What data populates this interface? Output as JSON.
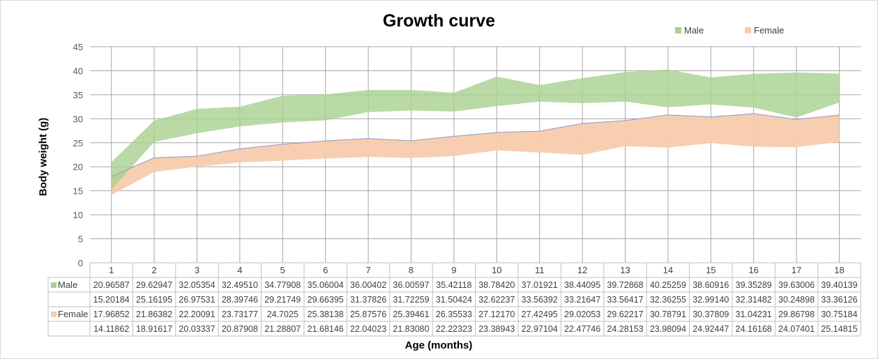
{
  "chart_data": {
    "type": "area",
    "title": "Growth curve",
    "xlabel": "Age (months)",
    "ylabel": "Body weight (g)",
    "ylim": [
      0,
      45
    ],
    "yticks": [
      "0",
      "5",
      "10",
      "15",
      "20",
      "25",
      "30",
      "35",
      "40",
      "45"
    ],
    "grid": true,
    "legend_position": "top-right",
    "categories": [
      "1",
      "2",
      "3",
      "4",
      "5",
      "6",
      "7",
      "8",
      "9",
      "10",
      "11",
      "12",
      "13",
      "14",
      "15",
      "16",
      "17",
      "18"
    ],
    "series": [
      {
        "name": "Male",
        "color": "#a9d18e",
        "upper": [
          "20.96587",
          "29.62947",
          "32.05354",
          "32.49510",
          "34.77908",
          "35.06004",
          "36.00402",
          "36.00597",
          "35.42118",
          "38.78420",
          "37.01921",
          "38.44095",
          "39.72868",
          "40.25259",
          "38.60916",
          "39.35289",
          "39.63006",
          "39.40139"
        ],
        "lower": [
          "15.20184",
          "25.16195",
          "26.97531",
          "28.39746",
          "29.21749",
          "29.66395",
          "31.37826",
          "31.72259",
          "31.50424",
          "32.62237",
          "33.56392",
          "33.21647",
          "33.56417",
          "32.36255",
          "32.99140",
          "32.31482",
          "30.24898",
          "33.36126"
        ]
      },
      {
        "name": "Female",
        "color": "#f8cbad",
        "upper": [
          "17.96852",
          "21.86382",
          "22.20091",
          "23.73177",
          "24.7025",
          "25.38138",
          "25.87576",
          "25.39461",
          "26.35533",
          "27.12170",
          "27.42495",
          "29.02053",
          "29.62217",
          "30.78791",
          "30.37809",
          "31.04231",
          "29.86798",
          "30.75184"
        ],
        "lower": [
          "14.11862",
          "18.91617",
          "20.03337",
          "20.87908",
          "21.28807",
          "21.68146",
          "22.04023",
          "21.83080",
          "22.22323",
          "23.38943",
          "22.97104",
          "22.47746",
          "24.28153",
          "23.98094",
          "24.92447",
          "24.16168",
          "24.07401",
          "25.14815"
        ]
      }
    ]
  }
}
